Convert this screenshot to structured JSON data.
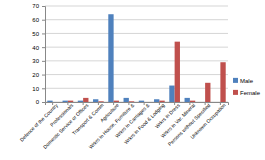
{
  "chart_data": {
    "type": "bar",
    "categories": [
      "Defence of the Country",
      "Professionals",
      "Domestic Service or Offices",
      "Transport & Comm",
      "Agriculture",
      "Wrkrs in House, Furniture &",
      "Wrkrs in Carriages &",
      "Wrkrs in Food & Lodging",
      "Wrkrs in Dress",
      "Wrkrs in Var. Mineral",
      "Persons without Specified",
      "Unknown Occupation"
    ],
    "series": [
      {
        "name": "Male",
        "color": "#4f81bd",
        "values": [
          1,
          1,
          1,
          2,
          64,
          3,
          1,
          2,
          12,
          3,
          0,
          0
        ]
      },
      {
        "name": "Female",
        "color": "#c0504d",
        "values": [
          0,
          1,
          3,
          0.5,
          1,
          0.5,
          0,
          1,
          44,
          1,
          14,
          29
        ]
      }
    ],
    "ylim": [
      0,
      70
    ],
    "yticks": [
      0,
      10,
      20,
      30,
      40,
      50,
      60,
      70
    ],
    "grid": true,
    "legend": "right"
  }
}
